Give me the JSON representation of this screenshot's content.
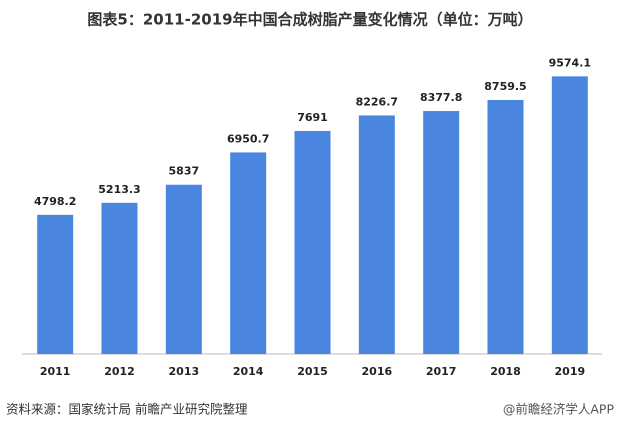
{
  "chart_data": {
    "type": "bar",
    "title": "图表5：2011-2019年中国合成树脂产量变化情况（单位：万吨）",
    "categories": [
      "2011",
      "2012",
      "2013",
      "2014",
      "2015",
      "2016",
      "2017",
      "2018",
      "2019"
    ],
    "values": [
      4798.2,
      5213.3,
      5837,
      6950.7,
      7691,
      8226.7,
      8377.8,
      8759.5,
      9574.1
    ],
    "color": "#4a86e0",
    "ylim": [
      0,
      10000
    ]
  },
  "source": "资料来源：国家统计局  前瞻产业研究院整理",
  "watermark": "@前瞻经济学人APP"
}
